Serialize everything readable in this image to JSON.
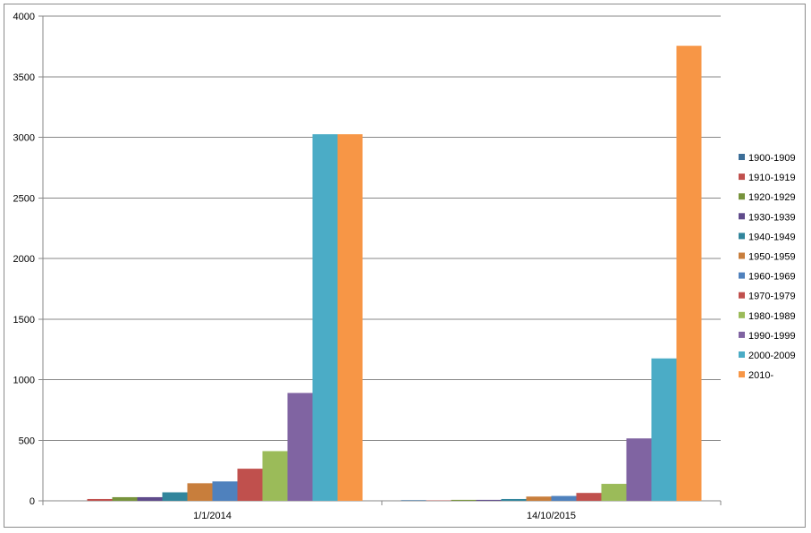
{
  "chart_data": {
    "type": "bar",
    "title": "",
    "xlabel": "",
    "ylabel": "",
    "ylim": [
      0,
      4000
    ],
    "yticks": [
      0,
      500,
      1000,
      1500,
      2000,
      2500,
      3000,
      3500,
      4000
    ],
    "grid": true,
    "legend_position": "right",
    "categories": [
      "1/1/2014",
      "14/10/2015"
    ],
    "series": [
      {
        "name": "1900-1909",
        "color": "#3c6e98",
        "values": [
          0,
          5
        ]
      },
      {
        "name": "1910-1919",
        "color": "#c0504d",
        "values": [
          15,
          3
        ]
      },
      {
        "name": "1920-1929",
        "color": "#77933c",
        "values": [
          30,
          8
        ]
      },
      {
        "name": "1930-1939",
        "color": "#5f4b8b",
        "values": [
          30,
          8
        ]
      },
      {
        "name": "1940-1949",
        "color": "#31859c",
        "values": [
          70,
          15
        ]
      },
      {
        "name": "1950-1959",
        "color": "#c87e3c",
        "values": [
          145,
          35
        ]
      },
      {
        "name": "1960-1969",
        "color": "#4f81bd",
        "values": [
          160,
          40
        ]
      },
      {
        "name": "1970-1979",
        "color": "#c0504d",
        "values": [
          265,
          65
        ]
      },
      {
        "name": "1980-1989",
        "color": "#9bbb59",
        "values": [
          410,
          140
        ]
      },
      {
        "name": "1990-1999",
        "color": "#8064a2",
        "values": [
          890,
          515
        ]
      },
      {
        "name": "2000-2009",
        "color": "#4bacc6",
        "values": [
          3025,
          1175
        ]
      },
      {
        "name": "2010-",
        "color": "#f79646",
        "values": [
          3025,
          3755
        ]
      }
    ]
  }
}
